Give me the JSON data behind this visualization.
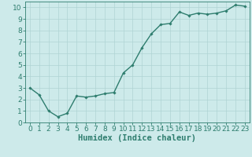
{
  "x": [
    0,
    1,
    2,
    3,
    4,
    5,
    6,
    7,
    8,
    9,
    10,
    11,
    12,
    13,
    14,
    15,
    16,
    17,
    18,
    19,
    20,
    21,
    22,
    23
  ],
  "y": [
    3.0,
    2.4,
    1.0,
    0.5,
    0.8,
    2.3,
    2.2,
    2.3,
    2.5,
    2.6,
    4.3,
    5.0,
    6.5,
    7.7,
    8.5,
    8.6,
    9.6,
    9.3,
    9.5,
    9.4,
    9.5,
    9.7,
    10.2,
    10.1
  ],
  "line_color": "#2e7d6e",
  "marker": "D",
  "markersize": 1.8,
  "linewidth": 1.0,
  "bg_color": "#cdeaea",
  "grid_color": "#afd4d4",
  "xlabel": "Humidex (Indice chaleur)",
  "ylim": [
    0,
    10.5
  ],
  "xlim": [
    -0.5,
    23.5
  ],
  "yticks": [
    0,
    1,
    2,
    3,
    4,
    5,
    6,
    7,
    8,
    9,
    10
  ],
  "xticks": [
    0,
    1,
    2,
    3,
    4,
    5,
    6,
    7,
    8,
    9,
    10,
    11,
    12,
    13,
    14,
    15,
    16,
    17,
    18,
    19,
    20,
    21,
    22,
    23
  ],
  "font_size": 6.5,
  "xlabel_fontsize": 7.5
}
